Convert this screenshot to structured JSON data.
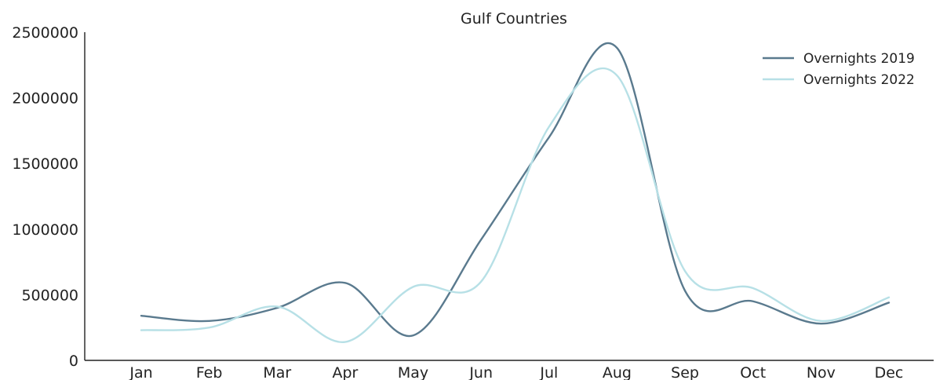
{
  "chart_data": {
    "type": "line",
    "title": "Gulf Countries",
    "xlabel": "",
    "ylabel": "",
    "categories": [
      "Jan",
      "Feb",
      "Mar",
      "Apr",
      "May",
      "Jun",
      "Jul",
      "Aug",
      "Sep",
      "Oct",
      "Nov",
      "Dec"
    ],
    "y_ticks": [
      "0",
      "500000",
      "1000000",
      "1500000",
      "2000000",
      "2500000"
    ],
    "ylim": [
      0,
      2500000
    ],
    "grid": false,
    "legend_position": "top-right",
    "smooth": true,
    "series": [
      {
        "name": "Overnights 2019",
        "color": "#5a7a8e",
        "values": [
          340000,
          300000,
          400000,
          590000,
          190000,
          920000,
          1700000,
          2380000,
          530000,
          450000,
          280000,
          440000
        ]
      },
      {
        "name": "Overnights 2022",
        "color": "#b7e0e6",
        "values": [
          230000,
          250000,
          410000,
          140000,
          560000,
          600000,
          1780000,
          2170000,
          680000,
          550000,
          300000,
          480000
        ]
      }
    ]
  }
}
